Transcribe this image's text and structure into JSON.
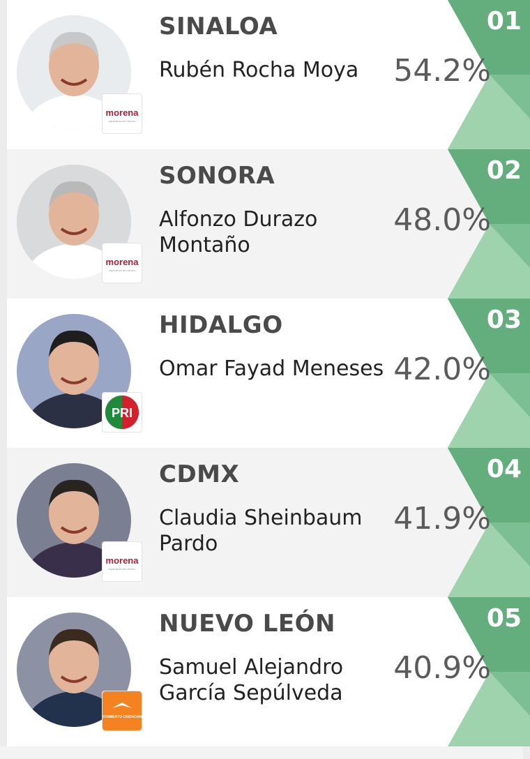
{
  "colors": {
    "green_dark": "#64ad7d",
    "green_mid": "#7cbf92",
    "green_light": "#a6d6b3",
    "morena": "#a3233a",
    "pri_green": "#1f8a3c",
    "pri_red": "#d4202c",
    "mc_orange": "#f58220"
  },
  "items": [
    {
      "rank": "01",
      "state": "SINALOA",
      "name": "Rubén Rocha Moya",
      "percentage": "54.2%",
      "party": "morena",
      "party_tagline": "esperanza de méxico"
    },
    {
      "rank": "02",
      "state": "SONORA",
      "name": "Alfonzo Durazo Montaño",
      "percentage": "48.0%",
      "party": "morena",
      "party_tagline": "esperanza de méxico"
    },
    {
      "rank": "03",
      "state": "HIDALGO",
      "name": "Omar Fayad Meneses",
      "percentage": "42.0%",
      "party": "PRI",
      "party_tagline": ""
    },
    {
      "rank": "04",
      "state": "CDMX",
      "name": "Claudia Sheinbaum Pardo",
      "percentage": "41.9%",
      "party": "morena",
      "party_tagline": "esperanza de méxico"
    },
    {
      "rank": "05",
      "state": "NUEVO LEÓN",
      "name": "Samuel Alejandro García Sepúlveda",
      "percentage": "40.9%",
      "party": "MOVIMIENTO CIUDADANO",
      "party_tagline": ""
    }
  ]
}
